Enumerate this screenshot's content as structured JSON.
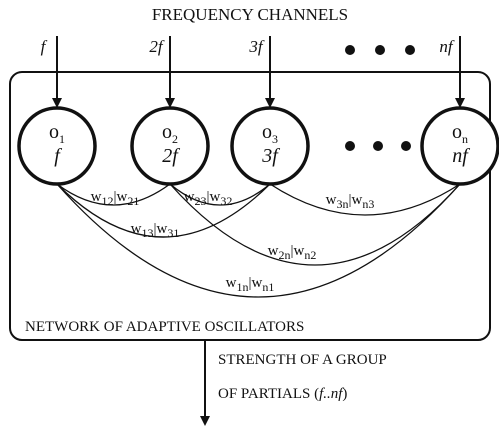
{
  "header": {
    "title": "FREQUENCY CHANNELS"
  },
  "inputs": [
    "f",
    "2f",
    "3f",
    "nf"
  ],
  "oscillators": [
    {
      "name": "o",
      "sub": "1",
      "freq": "f"
    },
    {
      "name": "o",
      "sub": "2",
      "freq": "2f"
    },
    {
      "name": "o",
      "sub": "3",
      "freq": "3f"
    },
    {
      "name": "o",
      "sub": "n",
      "freq": "nf"
    }
  ],
  "weights": [
    {
      "a": "w",
      "a_sub": "12",
      "sep": "|",
      "b": "w",
      "b_sub": "21"
    },
    {
      "a": "w",
      "a_sub": "23",
      "sep": "|",
      "b": "w",
      "b_sub": "32"
    },
    {
      "a": "w",
      "a_sub": "3n",
      "sep": "|",
      "b": "w",
      "b_sub": "n3"
    },
    {
      "a": "w",
      "a_sub": "13",
      "sep": "|",
      "b": "w",
      "b_sub": "31"
    },
    {
      "a": "w",
      "a_sub": "2n",
      "sep": "|",
      "b": "w",
      "b_sub": "n2"
    },
    {
      "a": "w",
      "a_sub": "1n",
      "sep": "|",
      "b": "w",
      "b_sub": "n1"
    }
  ],
  "network_label": "NETWORK OF ADAPTIVE OSCILLATORS",
  "output": {
    "line1": "STRENGTH OF A GROUP",
    "line2": [
      "OF PARTIALS (",
      "f..nf",
      ")"
    ]
  }
}
